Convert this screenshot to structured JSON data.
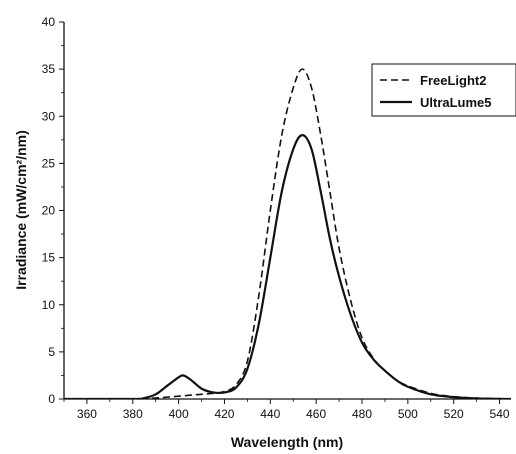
{
  "chart_data": {
    "type": "line",
    "title": "",
    "xlabel": "Wavelength (nm)",
    "ylabel": "Irradiance (mW/cm²/nm)",
    "xlim": [
      350,
      545
    ],
    "ylim": [
      0,
      40
    ],
    "xticks": [
      360,
      380,
      400,
      420,
      440,
      460,
      480,
      500,
      520,
      540
    ],
    "yticks": [
      0,
      5,
      10,
      15,
      20,
      25,
      30,
      35,
      40
    ],
    "grid": false,
    "legend_position": "top-right",
    "series": [
      {
        "name": "FreeLight2",
        "style": "dashed",
        "color": "#111111",
        "x": [
          350,
          380,
          390,
          395,
          400,
          405,
          410,
          415,
          420,
          425,
          430,
          435,
          440,
          445,
          450,
          454,
          458,
          462,
          466,
          470,
          475,
          480,
          485,
          490,
          495,
          500,
          510,
          520,
          530,
          545
        ],
        "y": [
          0,
          0,
          0.1,
          0.2,
          0.3,
          0.4,
          0.5,
          0.6,
          0.8,
          1.5,
          4,
          11,
          20,
          28,
          33,
          35,
          33,
          28,
          22,
          16,
          10.5,
          6.5,
          4.3,
          3,
          2,
          1.4,
          0.6,
          0.25,
          0.1,
          0
        ]
      },
      {
        "name": "UltraLume5",
        "style": "solid",
        "color": "#111111",
        "x": [
          350,
          380,
          385,
          390,
          395,
          400,
          402,
          405,
          410,
          415,
          420,
          425,
          430,
          435,
          440,
          445,
          450,
          454,
          458,
          462,
          466,
          470,
          475,
          480,
          485,
          490,
          495,
          500,
          510,
          520,
          530,
          545
        ],
        "y": [
          0,
          0,
          0.1,
          0.5,
          1.4,
          2.3,
          2.5,
          2.1,
          1.1,
          0.7,
          0.7,
          1.2,
          3.2,
          8,
          15,
          22,
          26.5,
          28,
          26.5,
          22,
          17,
          13,
          9,
          6,
          4.2,
          3,
          2,
          1.3,
          0.5,
          0.2,
          0.05,
          0
        ]
      }
    ]
  }
}
